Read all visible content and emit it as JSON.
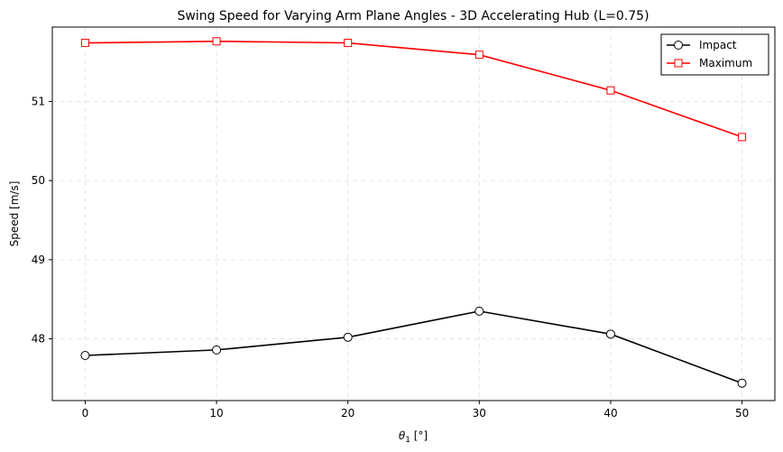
{
  "chart_data": {
    "type": "line",
    "title": "Swing Speed for Varying Arm Plane Angles - 3D Accelerating Hub (L=0.75)",
    "xlabel_base": "θ",
    "xlabel_sub": "1",
    "xlabel_unit": " [°]",
    "ylabel": "Speed [m/s]",
    "x": [
      0,
      10,
      20,
      30,
      40,
      50
    ],
    "xticks": [
      0,
      10,
      20,
      30,
      40,
      50
    ],
    "yticks": [
      48,
      49,
      50,
      51
    ],
    "xlim": [
      -2.5,
      52.5
    ],
    "ylim": [
      47.22,
      51.94
    ],
    "grid": true,
    "legend_position": "top-right",
    "series": [
      {
        "name": "Impact",
        "marker": "circle",
        "color": "#000000",
        "values": [
          47.79,
          47.86,
          48.02,
          48.35,
          48.06,
          47.44
        ]
      },
      {
        "name": "Maximum",
        "marker": "square",
        "color": "#ff0000",
        "values": [
          51.74,
          51.76,
          51.74,
          51.59,
          51.14,
          50.55
        ]
      }
    ]
  }
}
